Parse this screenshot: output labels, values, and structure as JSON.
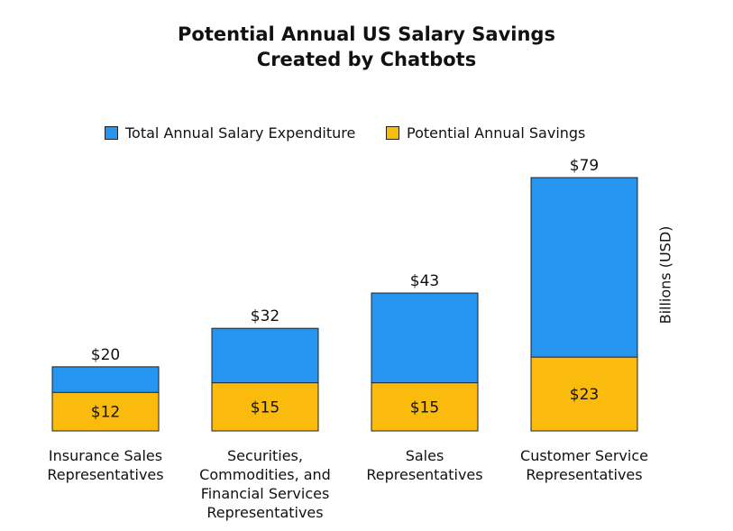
{
  "chart_data": {
    "type": "bar",
    "title_line1": "Potential Annual US Salary Savings",
    "title_line2": "Created by Chatbots",
    "ylabel": "Billions (USD)",
    "categories": [
      [
        "Insurance Sales",
        "Representatives"
      ],
      [
        "Securities,",
        "Commodities, and",
        "Financial Services",
        "Representatives"
      ],
      [
        "Sales",
        "Representatives"
      ],
      [
        "Customer Service",
        "Representatives"
      ]
    ],
    "series": [
      {
        "name": "Total Annual Salary Expenditure",
        "color": "#2595f0",
        "values": [
          20,
          32,
          43,
          79
        ],
        "labels": [
          "$20",
          "$32",
          "$43",
          "$79"
        ]
      },
      {
        "name": "Potential Annual Savings",
        "color": "#fbbb0c",
        "values": [
          12,
          15,
          15,
          23
        ],
        "labels": [
          "$12",
          "$15",
          "$15",
          "$23"
        ]
      }
    ],
    "ylim": [
      0,
      79
    ],
    "legend": "top",
    "grid": false
  }
}
